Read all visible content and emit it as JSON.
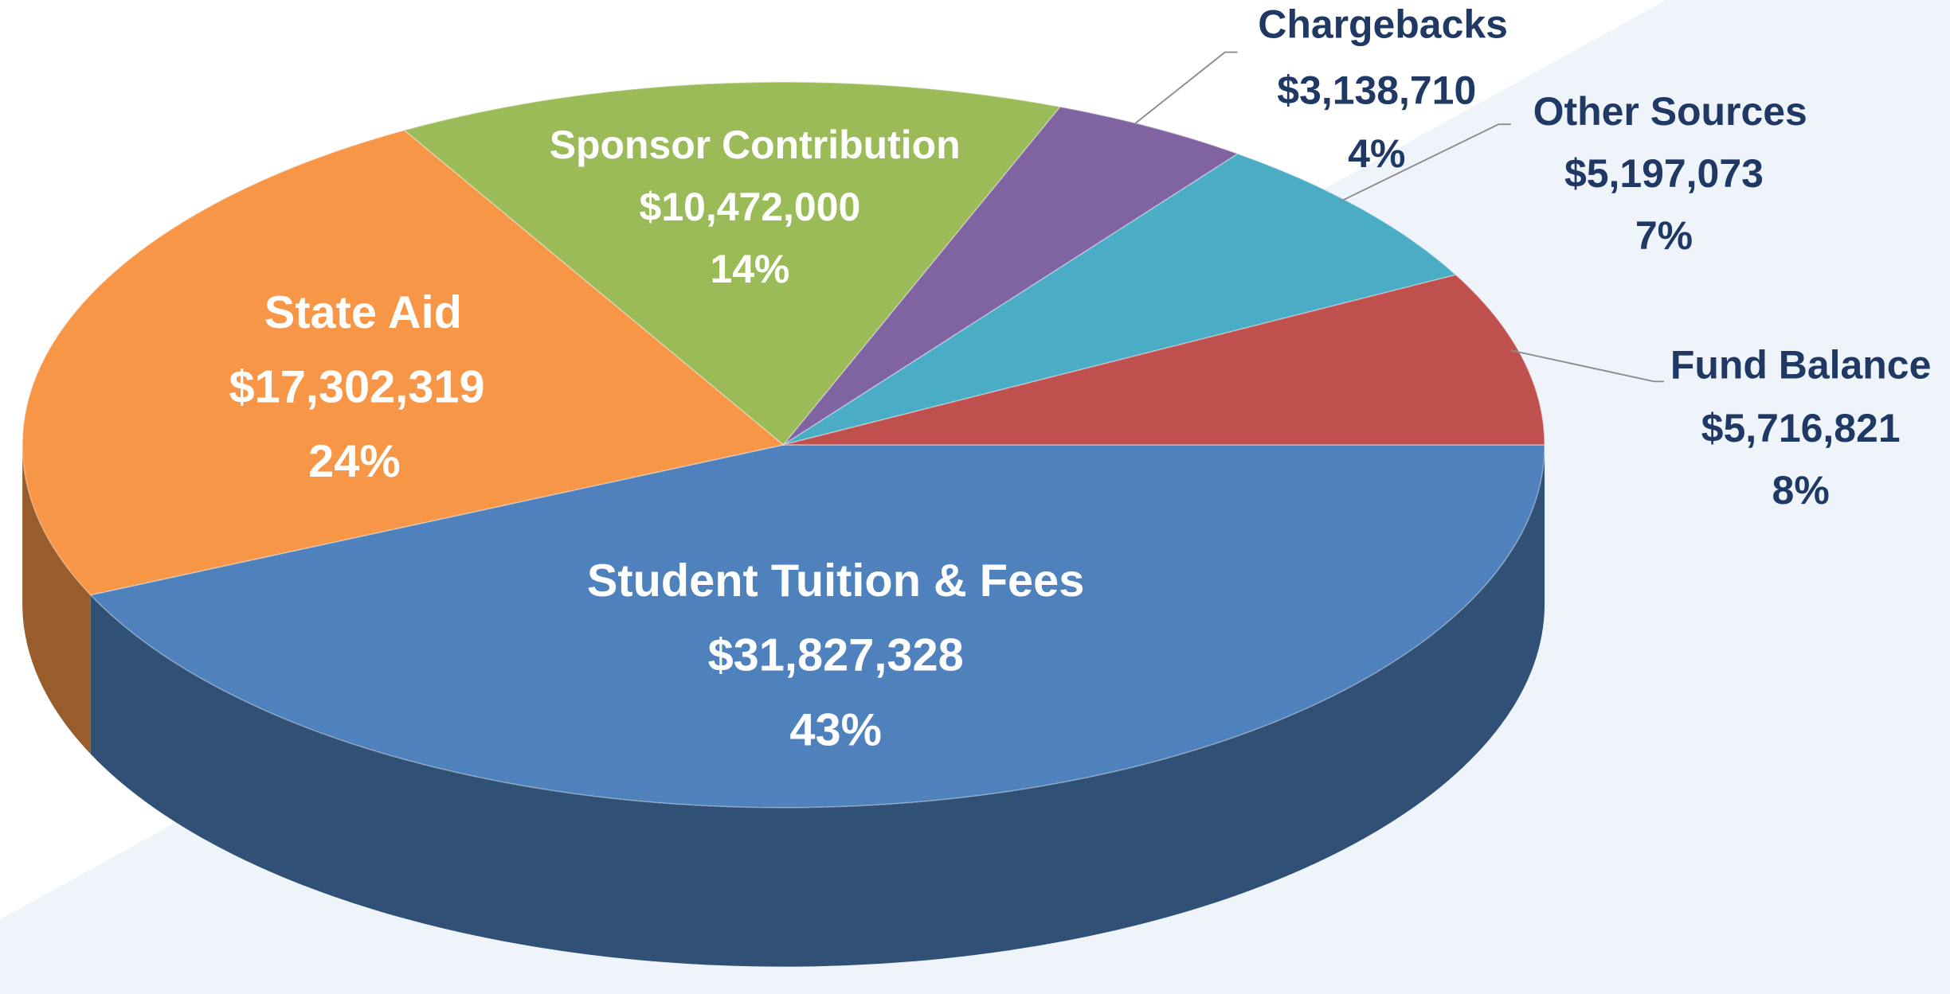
{
  "chart_data": {
    "type": "pie3d",
    "categories": [
      "Student Tuition & Fees",
      "State Aid",
      "Sponsor Contribution",
      "Chargebacks",
      "Other Sources",
      "Fund Balance"
    ],
    "values": [
      31827328,
      17302319,
      10472000,
      3138710,
      5197073,
      5716821
    ],
    "value_labels": [
      "$31,827,328",
      "$17,302,319",
      "$10,472,000",
      "$3,138,710",
      "$5,197,073",
      "$5,716,821"
    ],
    "percents": [
      43,
      24,
      14,
      4,
      7,
      8
    ],
    "percent_labels": [
      "43%",
      "24%",
      "14%",
      "4%",
      "7%",
      "8%"
    ],
    "colors": [
      "#4f81bd",
      "#f79646",
      "#9bbb59",
      "#8064a2",
      "#4bacc6",
      "#c0504d"
    ]
  }
}
